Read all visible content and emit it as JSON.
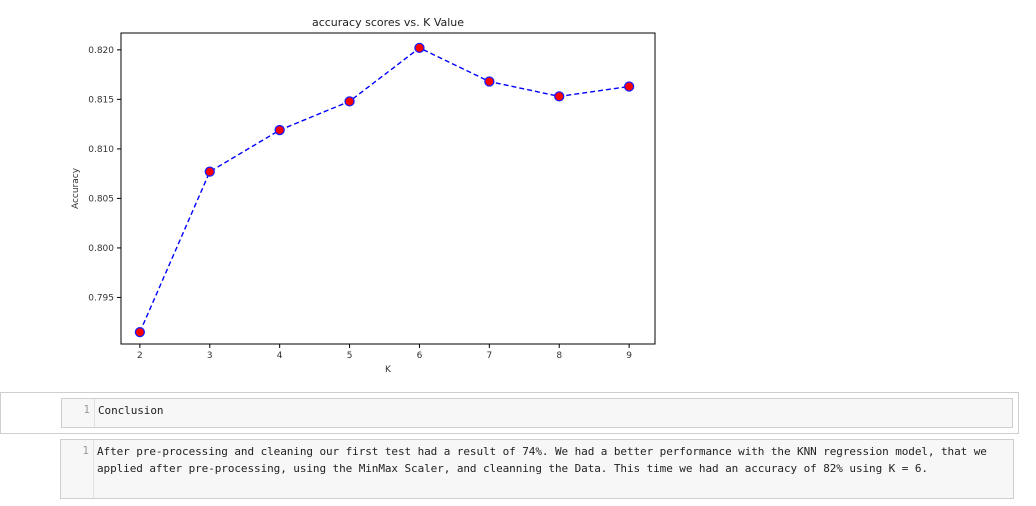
{
  "chart_data": {
    "type": "line",
    "title": "accuracy scores vs. K Value",
    "xlabel": "K",
    "ylabel": "Accuracy",
    "x": [
      2,
      3,
      4,
      5,
      6,
      7,
      8,
      9
    ],
    "values": [
      0.7915,
      0.8077,
      0.8119,
      0.8148,
      0.8202,
      0.8168,
      0.8153,
      0.8163
    ],
    "xticks": [
      "2",
      "3",
      "4",
      "5",
      "6",
      "7",
      "8",
      "9"
    ],
    "yticks": [
      "0.795",
      "0.800",
      "0.805",
      "0.810",
      "0.815",
      "0.820"
    ],
    "ytick_values": [
      0.795,
      0.8,
      0.805,
      0.81,
      0.815,
      0.82
    ],
    "xlim": [
      1.73,
      9.37
    ],
    "ylim": [
      0.7903,
      0.8217
    ],
    "line_style": "dashed",
    "line_color": "#0000ff",
    "marker_face_color": "#ff0000",
    "marker_edge_color": "#1a1aff",
    "grid": false
  },
  "cells": [
    {
      "line_no": "1",
      "text": "Conclusion"
    },
    {
      "line_no": "1",
      "text": "After pre-processing and cleaning our first test had a result of 74%. We had a better performance with the KNN regression model, that we applied after pre-processing, using the MinMax Scaler, and cleanning the Data. This time we had an accuracy of 82% using K = 6."
    }
  ]
}
